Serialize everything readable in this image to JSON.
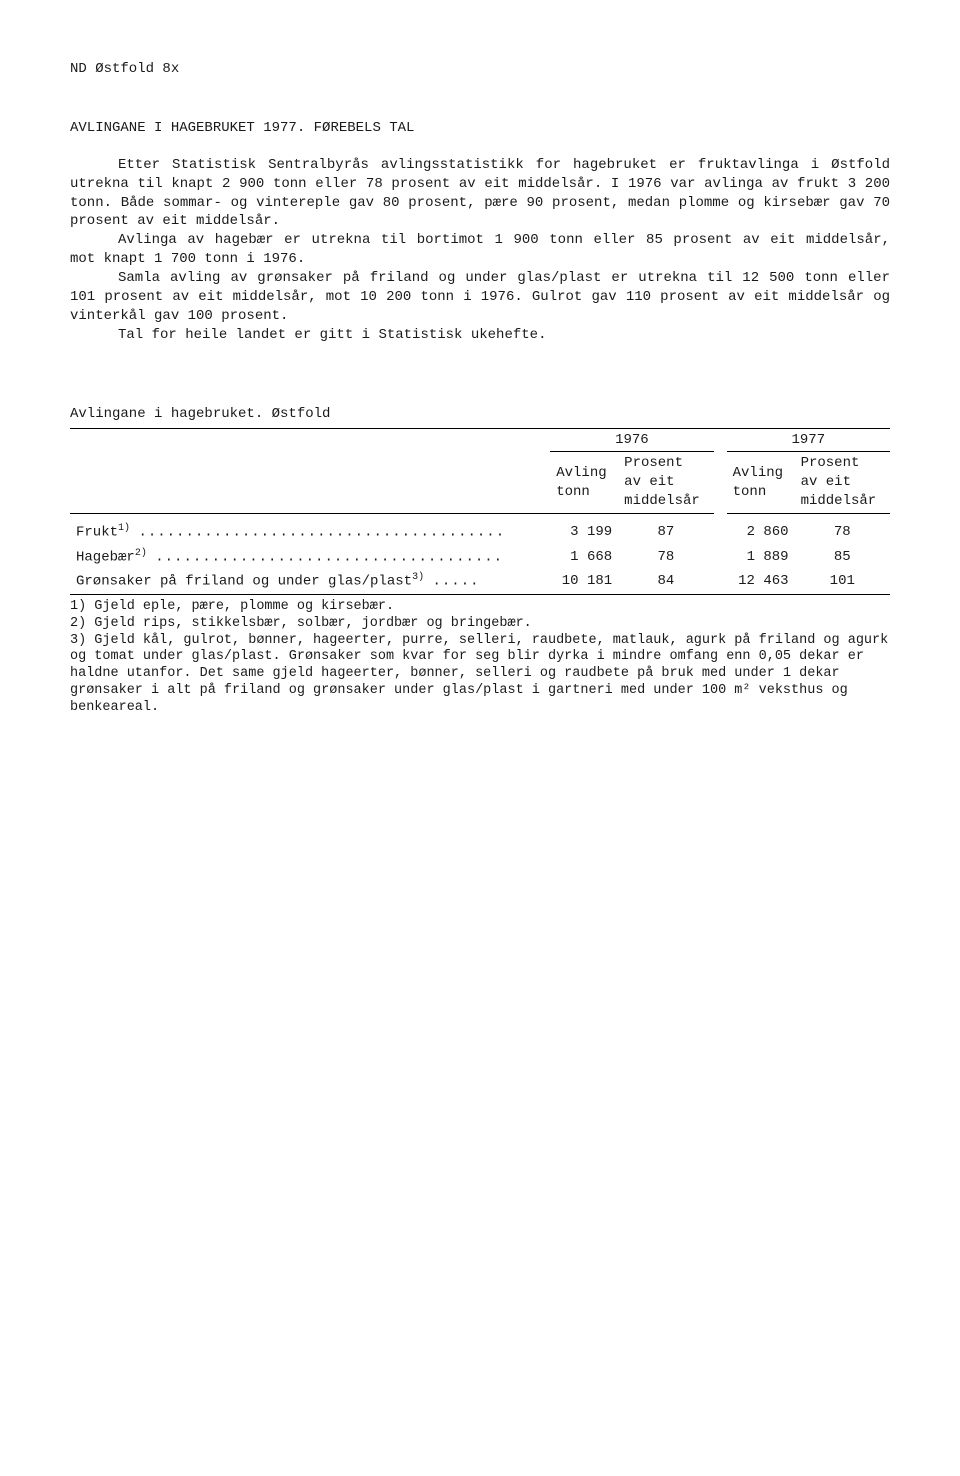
{
  "header": "ND Østfold 8x",
  "title": "AVLINGANE I HAGEBRUKET 1977.  FØREBELS TAL",
  "paragraphs": {
    "p1": "Etter Statistisk Sentralbyrås avlingsstatistikk for hagebruket er fruktavlinga i Østfold utrekna til knapt 2 900 tonn eller 78 prosent av eit middelsår. I 1976 var avlinga av frukt 3 200 tonn. Både sommar- og vintereple gav 80 prosent, pære 90 prosent, medan plomme og kirsebær gav 70 prosent av eit middelsår.",
    "p2": "Avlinga av hagebær er utrekna til bortimot 1 900 tonn eller 85 prosent av eit middelsår, mot knapt 1 700 tonn i 1976.",
    "p3": "Samla avling av grønsaker på friland og under glas/plast er utrekna til 12 500 tonn eller 101 prosent av eit middelsår, mot 10 200 tonn i 1976. Gulrot gav 110 prosent av eit middelsår og vinterkål gav 100 prosent.",
    "p4": "Tal for heile landet er gitt i Statistisk ukehefte."
  },
  "table": {
    "caption": "Avlingane i hagebruket.  Østfold",
    "year1": "1976",
    "year2": "1977",
    "col_avling": "Avling\ntonn",
    "col_prosent": "Prosent\nav eit\nmiddelsår",
    "rows": [
      {
        "label_html": "Frukt",
        "sup": "1)",
        "dots": ".......................................",
        "v1": "3 199",
        "p1": "87",
        "v2": "2 860",
        "p2": "78"
      },
      {
        "label_html": "Hagebær",
        "sup": "2)",
        "dots": ".....................................",
        "v1": "1 668",
        "p1": "78",
        "v2": "1 889",
        "p2": "85"
      },
      {
        "label_html": "Grønsaker på friland og under glas/plast",
        "sup": "3)",
        "dots": ".....",
        "v1": "10 181",
        "p1": "84",
        "v2": "12 463",
        "p2": "101"
      }
    ]
  },
  "footnotes": {
    "f1": "1) Gjeld eple, pære, plomme og kirsebær.",
    "f2": "2) Gjeld rips, stikkelsbær, solbær, jordbær og bringebær.",
    "f3": "3) Gjeld kål, gulrot, bønner, hageerter, purre, selleri, raudbete, matlauk, agurk på friland og agurk og tomat under glas/plast.  Grønsaker som kvar for seg blir dyrka i mindre omfang enn 0,05 dekar er haldne utanfor.  Det same gjeld hageerter, bønner, selleri og raudbete på bruk med under 1 dekar grønsaker i alt på friland og grønsaker under glas/plast i gartneri med under 100 m² veksthus og benkeareal."
  }
}
